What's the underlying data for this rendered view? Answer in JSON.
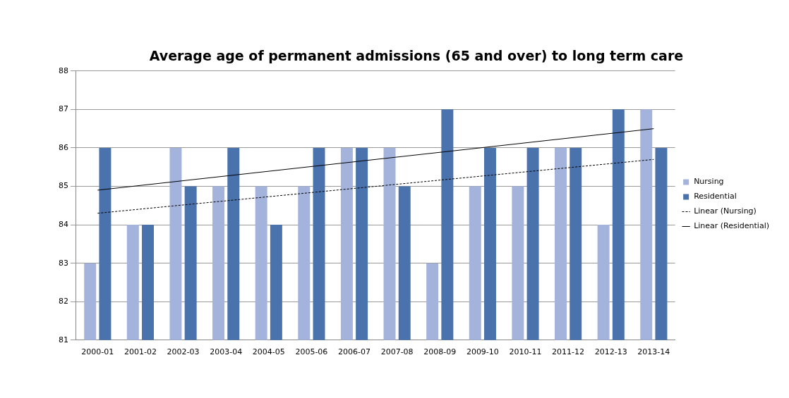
{
  "chart_data": {
    "type": "bar",
    "title": "Average age of permanent admissions (65 and over) to long term care",
    "categories": [
      "2000-01",
      "2001-02",
      "2002-03",
      "2003-04",
      "2004-05",
      "2005-06",
      "2006-07",
      "2007-08",
      "2008-09",
      "2009-10",
      "2010-11",
      "2011-12",
      "2012-13",
      "2013-14"
    ],
    "series": [
      {
        "name": "Nursing",
        "color": "#a3b3dc",
        "values": [
          83,
          84,
          86,
          85,
          85,
          85,
          86,
          86,
          83,
          85,
          85,
          86,
          84,
          87
        ]
      },
      {
        "name": "Residential",
        "color": "#4a72ac",
        "values": [
          86,
          84,
          85,
          86,
          84,
          86,
          86,
          85,
          87,
          86,
          86,
          86,
          87,
          86
        ]
      },
      {
        "name": "Linear (Nursing)",
        "type": "line",
        "color": "#000000",
        "line_style": "dashed",
        "marker": "none",
        "values": [
          84.3,
          null,
          null,
          null,
          null,
          null,
          null,
          null,
          null,
          null,
          null,
          null,
          null,
          85.7
        ]
      },
      {
        "name": "Linear (Residential)",
        "type": "line",
        "color": "#000000",
        "line_style": "solid",
        "marker": "none",
        "values": [
          84.9,
          null,
          null,
          null,
          null,
          null,
          null,
          null,
          null,
          null,
          null,
          null,
          null,
          86.5
        ]
      }
    ],
    "ylim": [
      81,
      88
    ],
    "yticks": [
      81,
      82,
      83,
      84,
      85,
      86,
      87,
      88
    ],
    "grid": "y",
    "legend": "right"
  }
}
